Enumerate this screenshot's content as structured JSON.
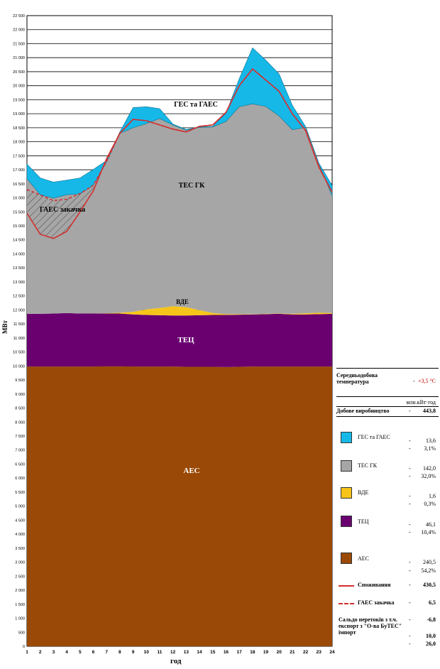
{
  "chart_data": {
    "type": "area",
    "xlabel": "год",
    "ylabel": "МВт",
    "ylim": [
      0,
      22500
    ],
    "ytick_step": 500,
    "yticks": [
      "0",
      "500",
      "1 000",
      "1 500",
      "2 000",
      "2 500",
      "3 000",
      "3 500",
      "4 000",
      "4 500",
      "5 000",
      "5 500",
      "6 000",
      "6 500",
      "7 000",
      "7 500",
      "8 000",
      "8 500",
      "9 000",
      "9 500",
      "10 000",
      "10 500",
      "11 000",
      "11 500",
      "12 000",
      "12 500",
      "13 000",
      "13 500",
      "14 000",
      "14 500",
      "15 000",
      "15 500",
      "16 000",
      "16 500",
      "17 000",
      "17 500",
      "18 000",
      "18 500",
      "19 000",
      "19 500",
      "20 000",
      "20 500",
      "21 000",
      "21 500",
      "22 000",
      "22 500"
    ],
    "categories": [
      "1",
      "2",
      "3",
      "4",
      "5",
      "6",
      "7",
      "8",
      "9",
      "10",
      "11",
      "12",
      "13",
      "14",
      "15",
      "16",
      "17",
      "18",
      "19",
      "20",
      "21",
      "22",
      "23",
      "24"
    ],
    "series": [
      {
        "name": "АЕС",
        "color": "#9a4a06",
        "values": [
          9980,
          9980,
          9980,
          9980,
          9980,
          9980,
          9990,
          9990,
          9980,
          9980,
          9980,
          9980,
          9970,
          9970,
          9970,
          9960,
          9970,
          9980,
          9980,
          9980,
          9980,
          9980,
          9980,
          9980
        ]
      },
      {
        "name": "ТЕЦ",
        "color": "#6a0070",
        "values": [
          1880,
          1880,
          1890,
          1910,
          1890,
          1890,
          1880,
          1880,
          1860,
          1840,
          1830,
          1820,
          1830,
          1840,
          1850,
          1860,
          1860,
          1860,
          1870,
          1880,
          1860,
          1860,
          1870,
          1880
        ]
      },
      {
        "name": "ВДЕ",
        "color": "#f7c51a",
        "values": [
          0,
          0,
          0,
          0,
          0,
          0,
          10,
          30,
          90,
          200,
          260,
          330,
          300,
          180,
          70,
          30,
          20,
          10,
          10,
          10,
          20,
          40,
          50,
          30
        ]
      },
      {
        "name": "ТЕС ГК",
        "color": "#a6a6a6",
        "values": [
          4820,
          4250,
          4120,
          4220,
          4270,
          4570,
          5400,
          6400,
          6570,
          6630,
          6760,
          6470,
          6310,
          6520,
          6640,
          6870,
          7400,
          7500,
          7400,
          7050,
          6570,
          6630,
          5310,
          4180
        ]
      },
      {
        "name": "ГЕС та ГАЕС",
        "color": "#16b8e8",
        "values": [
          520,
          600,
          570,
          520,
          570,
          570,
          50,
          50,
          720,
          600,
          350,
          30,
          30,
          20,
          20,
          300,
          1000,
          2000,
          1650,
          1500,
          870,
          30,
          30,
          370
        ]
      }
    ],
    "lines": [
      {
        "name": "Споживання",
        "color": "#d32f2f",
        "style": "solid",
        "values": [
          15450,
          14700,
          14550,
          14800,
          15500,
          16250,
          17400,
          18300,
          18800,
          18750,
          18600,
          18450,
          18350,
          18550,
          18600,
          19050,
          20000,
          20600,
          20200,
          19800,
          19000,
          18400,
          17100,
          16200
        ]
      },
      {
        "name": "ГАЕС закачка",
        "color": "#d32f2f",
        "style": "dashed",
        "values": [
          16300,
          16100,
          15900,
          15950,
          16150,
          16450,
          17300,
          18300,
          18800,
          18750,
          18600,
          18450,
          18350,
          18550,
          18600,
          19050,
          20000,
          20600,
          20200,
          19800,
          19000,
          18400,
          17100,
          16200
        ]
      }
    ],
    "area_labels": {
      "ges": "ГЕС та ГАЕС",
      "tes": "ТЕС ГК",
      "gaes_pump": "ГАЕС закачка",
      "vde": "ВДЕ",
      "tec": "ТЕЦ",
      "aes": "АЕС"
    }
  },
  "panel": {
    "temp_label": "Середньодобова температура",
    "temp_dash": "-",
    "temp_value": "+3,5 °С",
    "units": "млн.кВт·год",
    "total_label": "Добове виробництво",
    "total_dash": "-",
    "total_value": "443,8",
    "items": [
      {
        "name": "ГЕС та ГАЕС",
        "color": "#16b8e8",
        "value": "13,6",
        "share": "3,1%"
      },
      {
        "name": "ТЕС ГК",
        "color": "#a6a6a6",
        "value": "142,0",
        "share": "32,0%"
      },
      {
        "name": "ВДЕ",
        "color": "#f7c51a",
        "value": "1,6",
        "share": "0,3%"
      },
      {
        "name": "ТЕЦ",
        "color": "#6a0070",
        "value": "46,1",
        "share": "10,4%"
      },
      {
        "name": "АЕС",
        "color": "#9a4a06",
        "value": "240,5",
        "share": "54,2%"
      }
    ],
    "consumption_label": "Споживання",
    "consumption_value": "430,5",
    "pump_label": "ГАЕС закачка",
    "pump_value": "6,5",
    "saldo_label": "Сальдо перетоків з т.ч. експорт з \"О-ва БуТЕС\" імпорт",
    "saldo_value": "-6,8",
    "export_value": "10,0",
    "import_value": "26,0",
    "dash": "-"
  }
}
